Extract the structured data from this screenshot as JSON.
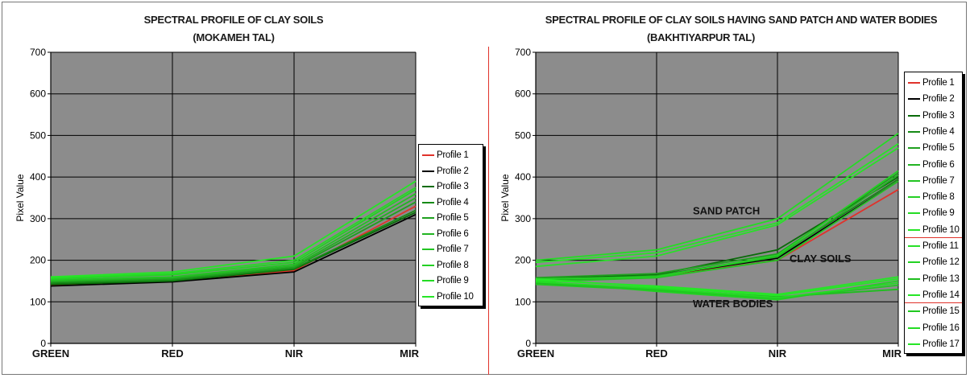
{
  "chart_data": [
    {
      "type": "line",
      "title": "SPECTRAL PROFILE OF CLAY SOILS",
      "subtitle": "(MOKAMEH TAL)",
      "xlabel": "",
      "ylabel": "Pixel Value",
      "ylim": [
        0,
        700
      ],
      "yticks": [
        0,
        100,
        200,
        300,
        400,
        500,
        600,
        700
      ],
      "categories": [
        "GREEN",
        "RED",
        "NIR",
        "MIR"
      ],
      "grid": true,
      "legend": "right",
      "series": [
        {
          "name": "Profile 1",
          "color": "#e0322b",
          "values": [
            140,
            150,
            175,
            330
          ]
        },
        {
          "name": "Profile 2",
          "color": "#000000",
          "values": [
            138,
            148,
            172,
            310
          ]
        },
        {
          "name": "Profile 3",
          "color": "#0a6b0a",
          "values": [
            142,
            150,
            178,
            315
          ]
        },
        {
          "name": "Profile 4",
          "color": "#168a16",
          "values": [
            145,
            152,
            180,
            320
          ]
        },
        {
          "name": "Profile 5",
          "color": "#1fa01f",
          "values": [
            148,
            155,
            183,
            340
          ]
        },
        {
          "name": "Profile 6",
          "color": "#22b422",
          "values": [
            150,
            158,
            186,
            350
          ]
        },
        {
          "name": "Profile 7",
          "color": "#22c422",
          "values": [
            152,
            160,
            190,
            360
          ]
        },
        {
          "name": "Profile 8",
          "color": "#24d024",
          "values": [
            155,
            165,
            195,
            370
          ]
        },
        {
          "name": "Profile 9",
          "color": "#24dc24",
          "values": [
            157,
            168,
            200,
            375
          ]
        },
        {
          "name": "Profile 10",
          "color": "#26e626",
          "values": [
            160,
            172,
            210,
            390
          ]
        }
      ]
    },
    {
      "type": "line",
      "title": "SPECTRAL PROFILE OF CLAY SOILS HAVING SAND PATCH AND WATER BODIES",
      "subtitle": "(BAKHTIYARPUR TAL)",
      "xlabel": "",
      "ylabel": "Pixel Value",
      "ylim": [
        0,
        700
      ],
      "yticks": [
        0,
        100,
        200,
        300,
        400,
        500,
        600,
        700
      ],
      "categories": [
        "GREEN",
        "RED",
        "NIR",
        "MIR"
      ],
      "grid": true,
      "legend": "right",
      "annotations": [
        {
          "text": "SAND PATCH",
          "x": 1.3,
          "y": 310
        },
        {
          "text": "CLAY SOILS",
          "x": 2.1,
          "y": 195
        },
        {
          "text": "WATER BODIES",
          "x": 1.3,
          "y": 87
        }
      ],
      "series": [
        {
          "name": "Profile 1",
          "color": "#e0322b",
          "values": [
            150,
            160,
            200,
            370
          ]
        },
        {
          "name": "Profile 2",
          "color": "#000000",
          "values": [
            152,
            162,
            205,
            390
          ]
        },
        {
          "name": "Profile 3",
          "color": "#0a6b0a",
          "values": [
            155,
            165,
            225,
            400
          ]
        },
        {
          "name": "Profile 4",
          "color": "#168a16",
          "values": [
            153,
            163,
            210,
            395
          ]
        },
        {
          "name": "Profile 5",
          "color": "#1fa01f",
          "values": [
            158,
            168,
            215,
            410
          ]
        },
        {
          "name": "Profile 6",
          "color": "#22b422",
          "values": [
            150,
            162,
            208,
            405
          ]
        },
        {
          "name": "Profile 7",
          "color": "#22c422",
          "values": [
            148,
            158,
            200,
            390
          ]
        },
        {
          "name": "Profile 8",
          "color": "#24d024",
          "values": [
            155,
            160,
            212,
            415
          ]
        },
        {
          "name": "Profile 9",
          "color": "#24dc24",
          "values": [
            200,
            225,
            300,
            505
          ]
        },
        {
          "name": "Profile 10",
          "color": "#26e626",
          "values": [
            195,
            218,
            290,
            480
          ]
        },
        {
          "name": "Profile 11",
          "color": "#28e028",
          "values": [
            185,
            210,
            285,
            470
          ]
        },
        {
          "name": "Profile 12",
          "color": "#22d222",
          "values": [
            150,
            125,
            105,
            150
          ]
        },
        {
          "name": "Profile 13",
          "color": "#1ebe1e",
          "values": [
            145,
            130,
            112,
            130
          ]
        },
        {
          "name": "Profile 14",
          "color": "#26e626",
          "values": [
            155,
            135,
            115,
            155
          ]
        },
        {
          "name": "Profile 15",
          "color": "#20c820",
          "values": [
            142,
            128,
            108,
            140
          ]
        },
        {
          "name": "Profile 16",
          "color": "#24dc24",
          "values": [
            148,
            132,
            110,
            145
          ]
        },
        {
          "name": "Profile 17",
          "color": "#26e626",
          "values": [
            152,
            138,
            118,
            160
          ]
        }
      ],
      "legend_groups": [
        10,
        14
      ]
    }
  ]
}
